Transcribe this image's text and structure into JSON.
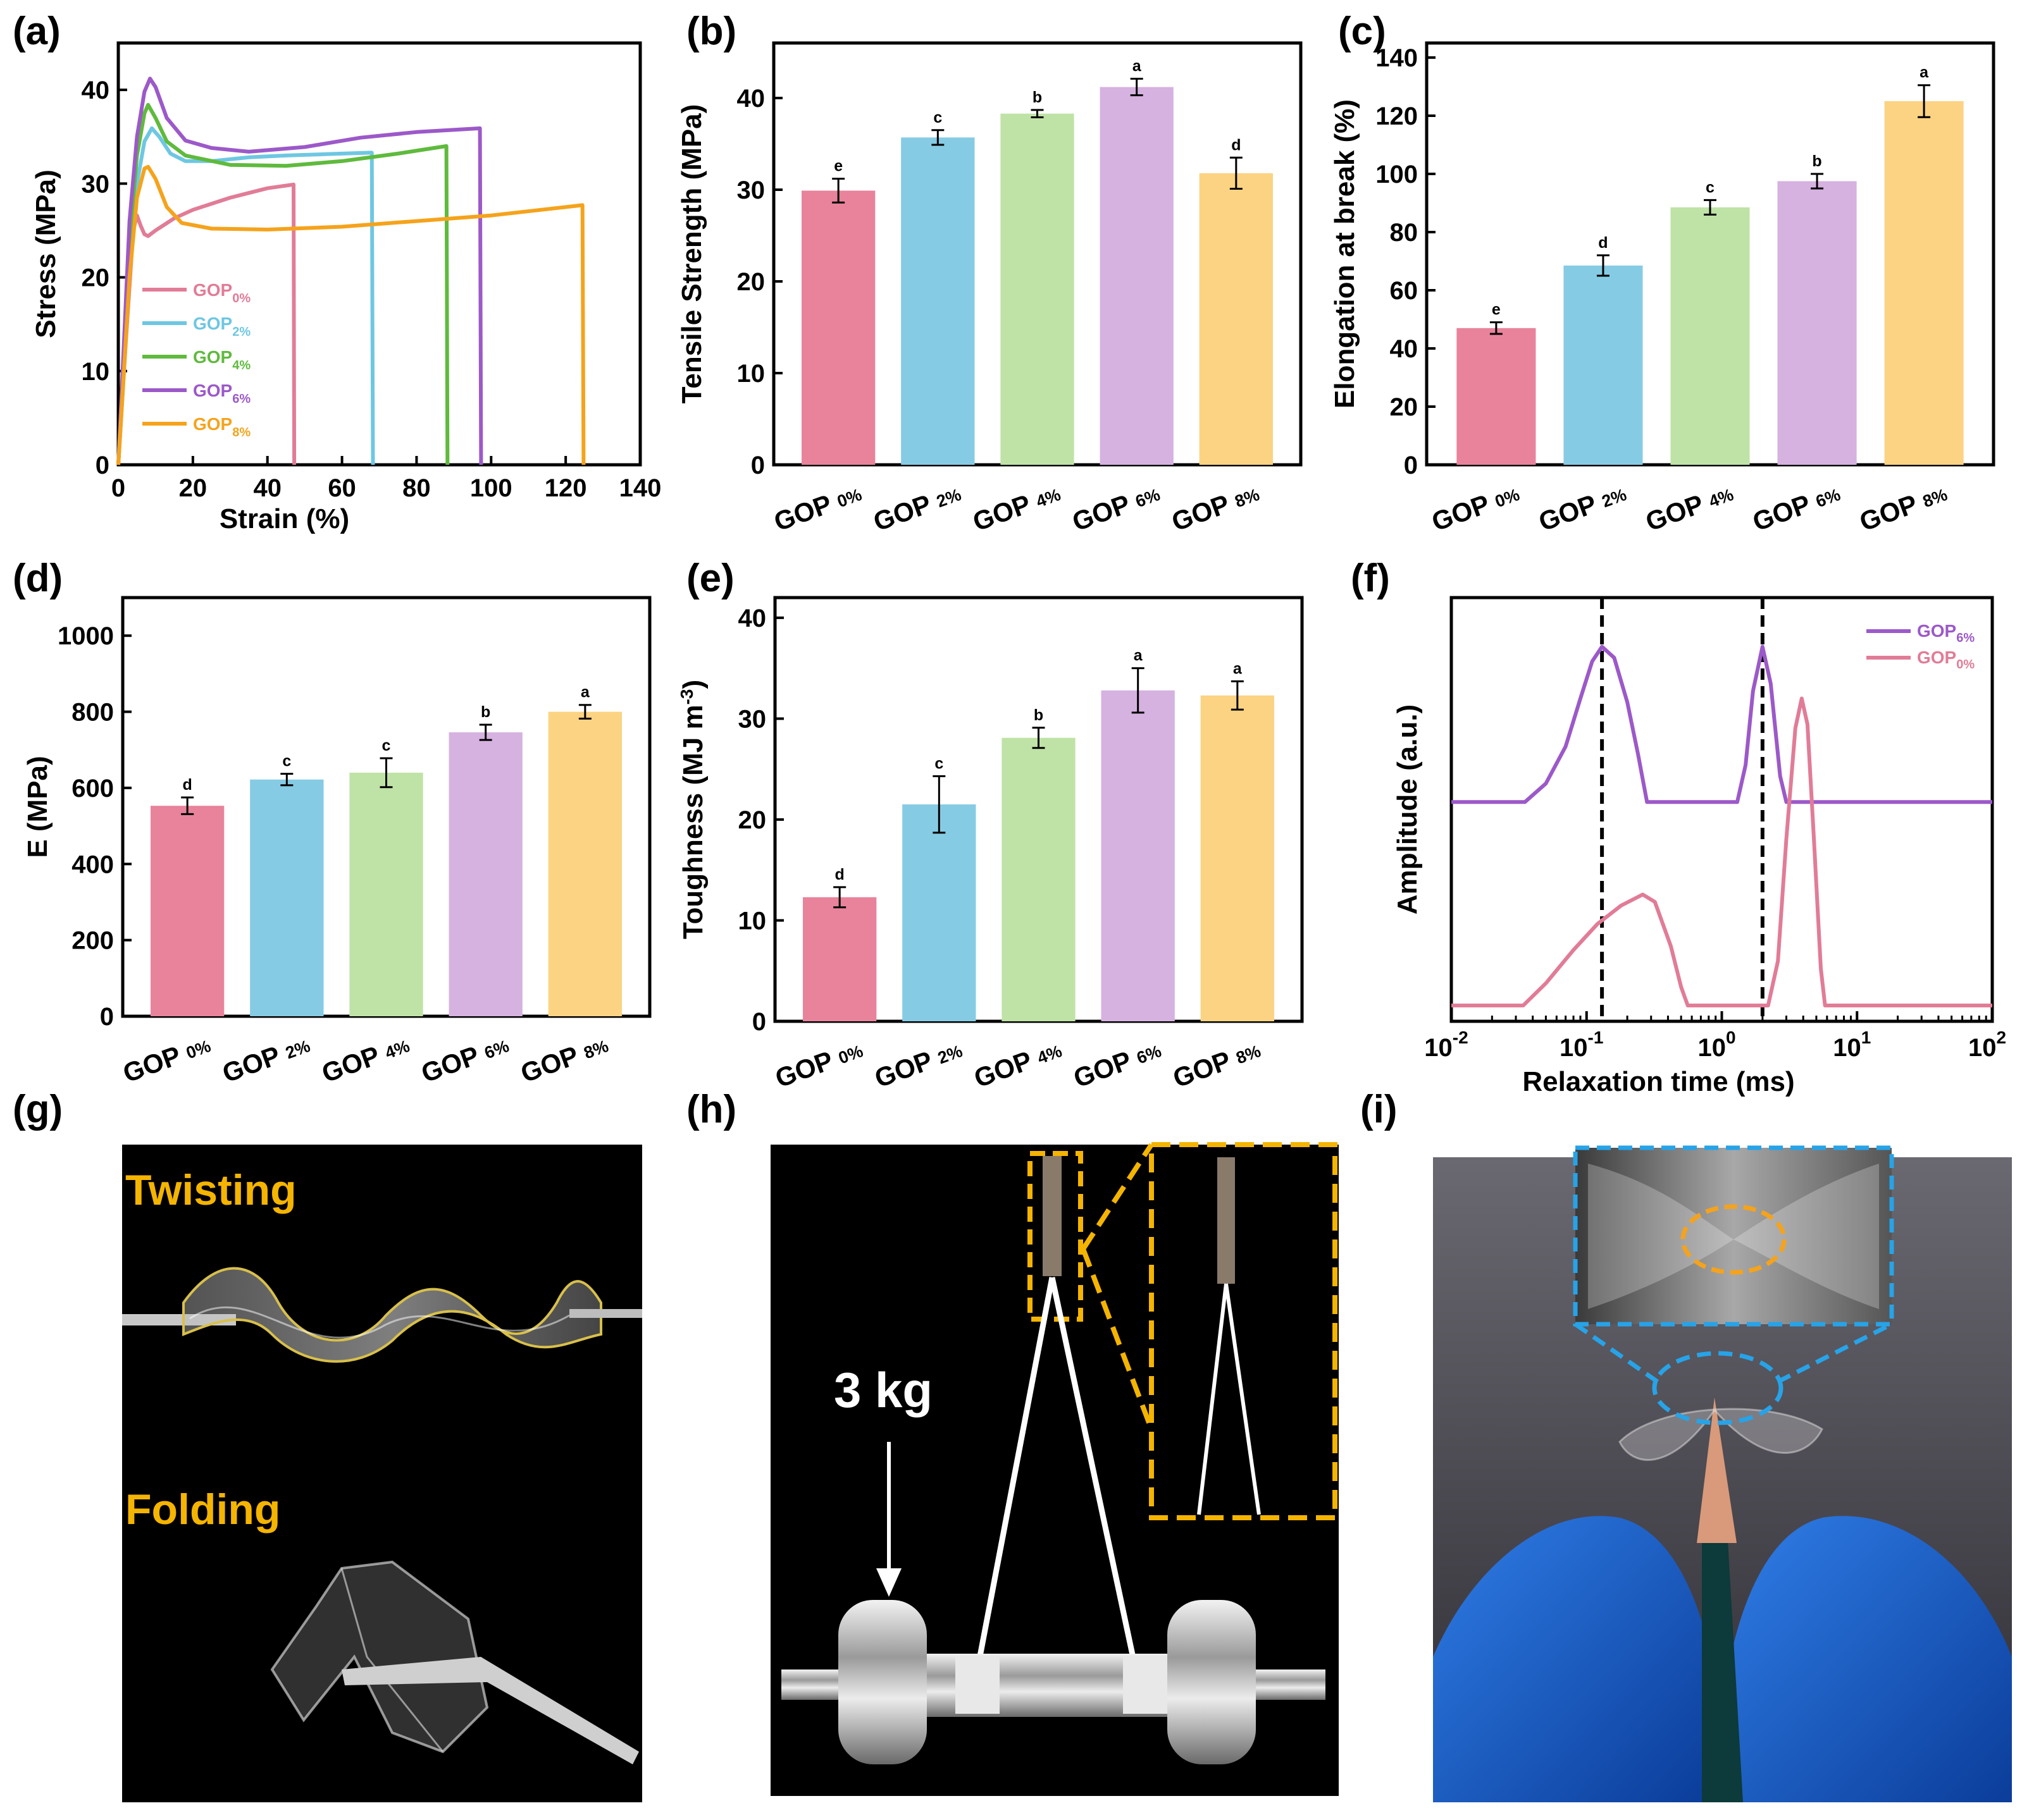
{
  "colors": {
    "GOP0": "#e17c97",
    "GOP2": "#6ec7e2",
    "GOP4": "#5fba3d",
    "GOP6": "#9c59c9",
    "GOP8": "#f5a31c",
    "bar0": "#e8839b",
    "bar2": "#86cbe4",
    "bar4": "#bfe3a6",
    "bar6": "#d6b2e0",
    "bar8": "#fbd382",
    "yellow": "#f4b400",
    "blue_dash": "#27a3e8"
  },
  "panels": {
    "a": "(a)",
    "b": "(b)",
    "c": "(c)",
    "d": "(d)",
    "e": "(e)",
    "f": "(f)",
    "g": "(g)",
    "h": "(h)",
    "i": "(i)"
  },
  "chart_data": [
    {
      "id": "a",
      "type": "line",
      "xlabel": "Strain (%)",
      "ylabel": "Stress (MPa)",
      "xlim": [
        0,
        140
      ],
      "ylim": [
        0,
        45
      ],
      "xticks": [
        0,
        20,
        40,
        60,
        80,
        100,
        120,
        140
      ],
      "yticks": [
        0,
        10,
        20,
        30,
        40
      ],
      "legend_position": "left-middle",
      "series": [
        {
          "name": "GOP",
          "sub": "0%",
          "color_key": "GOP0",
          "points": [
            [
              0,
              0
            ],
            [
              2,
              13
            ],
            [
              4,
              25
            ],
            [
              5,
              26.6
            ],
            [
              6,
              25.5
            ],
            [
              7,
              24.6
            ],
            [
              8,
              24.4
            ],
            [
              10,
              25
            ],
            [
              15,
              26.3
            ],
            [
              20,
              27.2
            ],
            [
              30,
              28.5
            ],
            [
              40,
              29.5
            ],
            [
              47,
              29.9
            ],
            [
              47.2,
              0
            ]
          ]
        },
        {
          "name": "GOP",
          "sub": "2%",
          "color_key": "GOP2",
          "points": [
            [
              0,
              0
            ],
            [
              3,
              20
            ],
            [
              5,
              30
            ],
            [
              7,
              34.5
            ],
            [
              9,
              35.9
            ],
            [
              11,
              35
            ],
            [
              14,
              33.2
            ],
            [
              18,
              32.4
            ],
            [
              25,
              32.4
            ],
            [
              35,
              32.8
            ],
            [
              45,
              33
            ],
            [
              60,
              33.2
            ],
            [
              68,
              33.3
            ],
            [
              68.3,
              0
            ]
          ]
        },
        {
          "name": "GOP",
          "sub": "4%",
          "color_key": "GOP4",
          "points": [
            [
              0,
              0
            ],
            [
              3,
              24
            ],
            [
              5,
              33
            ],
            [
              7,
              37.5
            ],
            [
              8,
              38.4
            ],
            [
              10,
              37
            ],
            [
              13,
              34.5
            ],
            [
              18,
              33
            ],
            [
              30,
              32
            ],
            [
              45,
              31.9
            ],
            [
              60,
              32.4
            ],
            [
              75,
              33.2
            ],
            [
              88,
              34
            ],
            [
              88.3,
              0
            ]
          ]
        },
        {
          "name": "GOP",
          "sub": "6%",
          "color_key": "GOP6",
          "points": [
            [
              0,
              0
            ],
            [
              3,
              26
            ],
            [
              5,
              35
            ],
            [
              7,
              39.8
            ],
            [
              8.5,
              41.2
            ],
            [
              10,
              40.3
            ],
            [
              13,
              37
            ],
            [
              18,
              34.6
            ],
            [
              25,
              33.8
            ],
            [
              35,
              33.4
            ],
            [
              50,
              33.9
            ],
            [
              65,
              34.9
            ],
            [
              80,
              35.5
            ],
            [
              97,
              35.9
            ],
            [
              97.3,
              0
            ]
          ]
        },
        {
          "name": "GOP",
          "sub": "8%",
          "color_key": "GOP8",
          "points": [
            [
              0,
              0
            ],
            [
              3,
              20
            ],
            [
              5,
              28.5
            ],
            [
              7,
              31.6
            ],
            [
              8,
              31.8
            ],
            [
              10,
              30.5
            ],
            [
              13,
              27.5
            ],
            [
              17,
              25.8
            ],
            [
              25,
              25.2
            ],
            [
              40,
              25.1
            ],
            [
              60,
              25.4
            ],
            [
              80,
              26
            ],
            [
              100,
              26.6
            ],
            [
              124.5,
              27.7
            ],
            [
              124.8,
              0
            ]
          ]
        }
      ]
    },
    {
      "id": "b",
      "type": "bar",
      "ylabel": "Tensile Strength (MPa)",
      "ylim": [
        0,
        46
      ],
      "yticks": [
        0,
        10,
        20,
        30,
        40
      ],
      "categories": [
        {
          "name": "GOP",
          "sub": "0%"
        },
        {
          "name": "GOP",
          "sub": "2%"
        },
        {
          "name": "GOP",
          "sub": "4%"
        },
        {
          "name": "GOP",
          "sub": "6%"
        },
        {
          "name": "GOP",
          "sub": "8%"
        }
      ],
      "values": [
        29.9,
        35.7,
        38.3,
        41.2,
        31.8
      ],
      "errors": [
        1.3,
        0.8,
        0.4,
        0.9,
        1.7
      ],
      "letters": [
        "e",
        "c",
        "b",
        "a",
        "d"
      ]
    },
    {
      "id": "c",
      "type": "bar",
      "ylabel": "Elongation at break (%)",
      "ylim": [
        0,
        145
      ],
      "yticks": [
        0,
        20,
        40,
        60,
        80,
        100,
        120,
        140
      ],
      "categories": [
        {
          "name": "GOP",
          "sub": "0%"
        },
        {
          "name": "GOP",
          "sub": "2%"
        },
        {
          "name": "GOP",
          "sub": "4%"
        },
        {
          "name": "GOP",
          "sub": "6%"
        },
        {
          "name": "GOP",
          "sub": "8%"
        }
      ],
      "values": [
        47,
        68.5,
        88.5,
        97.5,
        125
      ],
      "errors": [
        2,
        3.5,
        2.5,
        2.5,
        5.5
      ],
      "letters": [
        "e",
        "d",
        "c",
        "b",
        "a"
      ]
    },
    {
      "id": "d",
      "type": "bar",
      "ylabel": "E (MPa)",
      "ylim": [
        0,
        1100
      ],
      "yticks": [
        0,
        200,
        400,
        600,
        800,
        1000
      ],
      "categories": [
        {
          "name": "GOP",
          "sub": "0%"
        },
        {
          "name": "GOP",
          "sub": "2%"
        },
        {
          "name": "GOP",
          "sub": "4%"
        },
        {
          "name": "GOP",
          "sub": "6%"
        },
        {
          "name": "GOP",
          "sub": "8%"
        }
      ],
      "values": [
        553,
        622,
        640,
        746,
        800
      ],
      "errors": [
        22,
        15,
        38,
        20,
        18
      ],
      "letters": [
        "d",
        "c",
        "c",
        "b",
        "a"
      ]
    },
    {
      "id": "e",
      "type": "bar",
      "ylabel": "Toughness (MJ m",
      "ylabel_sup": "-3",
      "ylabel_end": ")",
      "ylim": [
        0,
        42
      ],
      "yticks": [
        0,
        10,
        20,
        30,
        40
      ],
      "categories": [
        {
          "name": "GOP",
          "sub": "0%"
        },
        {
          "name": "GOP",
          "sub": "2%"
        },
        {
          "name": "GOP",
          "sub": "4%"
        },
        {
          "name": "GOP",
          "sub": "6%"
        },
        {
          "name": "GOP",
          "sub": "8%"
        }
      ],
      "values": [
        12.3,
        21.5,
        28.1,
        32.8,
        32.3
      ],
      "errors": [
        1.0,
        2.8,
        1.0,
        2.2,
        1.4
      ],
      "letters": [
        "d",
        "c",
        "b",
        "a",
        "a"
      ]
    },
    {
      "id": "f",
      "type": "line",
      "xscale": "log",
      "xlabel": "Relaxation time (ms)",
      "ylabel": "Amplitude (a.u.)",
      "xlim": [
        0.01,
        100
      ],
      "xticks_exp": [
        "-2",
        "-1",
        "0",
        "1",
        "2"
      ],
      "xtick_base": "10",
      "vlines": [
        0.13,
        2.0
      ],
      "series": [
        {
          "name": "GOP",
          "sub": "6%",
          "color_key": "GOP6",
          "points": [
            [
              0.01,
              0.55
            ],
            [
              0.035,
              0.55
            ],
            [
              0.05,
              0.6
            ],
            [
              0.07,
              0.7
            ],
            [
              0.09,
              0.83
            ],
            [
              0.11,
              0.93
            ],
            [
              0.13,
              0.97
            ],
            [
              0.16,
              0.94
            ],
            [
              0.2,
              0.82
            ],
            [
              0.24,
              0.68
            ],
            [
              0.28,
              0.55
            ],
            [
              1.3,
              0.55
            ],
            [
              1.5,
              0.65
            ],
            [
              1.7,
              0.85
            ],
            [
              2.0,
              0.97
            ],
            [
              2.3,
              0.87
            ],
            [
              2.7,
              0.62
            ],
            [
              3.0,
              0.55
            ],
            [
              100,
              0.55
            ]
          ]
        },
        {
          "name": "GOP",
          "sub": "0%",
          "color_key": "GOP0",
          "points": [
            [
              0.01,
              0.0
            ],
            [
              0.034,
              0.0
            ],
            [
              0.05,
              0.06
            ],
            [
              0.08,
              0.15
            ],
            [
              0.12,
              0.22
            ],
            [
              0.18,
              0.27
            ],
            [
              0.26,
              0.3
            ],
            [
              0.32,
              0.28
            ],
            [
              0.42,
              0.16
            ],
            [
              0.5,
              0.05
            ],
            [
              0.56,
              0.0
            ],
            [
              2.2,
              0.0
            ],
            [
              2.6,
              0.12
            ],
            [
              3.0,
              0.45
            ],
            [
              3.5,
              0.75
            ],
            [
              3.9,
              0.83
            ],
            [
              4.3,
              0.76
            ],
            [
              4.8,
              0.45
            ],
            [
              5.4,
              0.1
            ],
            [
              5.8,
              0.0
            ],
            [
              100,
              0.0
            ]
          ]
        }
      ]
    }
  ],
  "photos": {
    "g": {
      "label_top": "Twisting",
      "label_bottom": "Folding"
    },
    "h": {
      "weight": "3 kg"
    }
  }
}
